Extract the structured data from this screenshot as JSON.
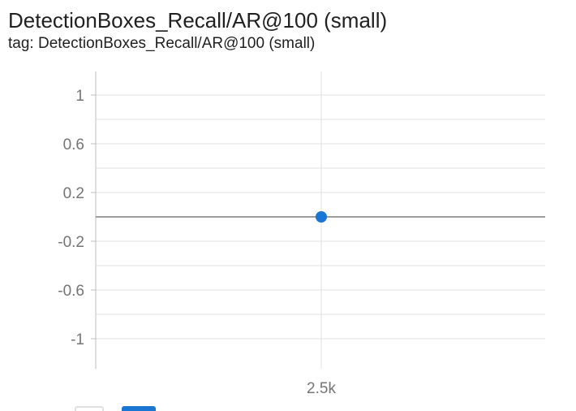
{
  "card": {
    "title": "DetectionBoxes_Recall/AR@100 (small)",
    "tag": "tag: DetectionBoxes_Recall/AR@100 (small)"
  },
  "colors": {
    "series": "#1976d2",
    "zero_line": "#9e9e9e",
    "grid": "#e0e0e0",
    "tick_text": "#757575"
  },
  "chart_data": {
    "type": "scatter",
    "title": "DetectionBoxes_Recall/AR@100 (small)",
    "xlabel": "",
    "ylabel": "",
    "x_tick_labels": [
      "2.5k"
    ],
    "x_ticks": [
      2500
    ],
    "y_tick_labels": [
      "1",
      "0.6",
      "0.2",
      "-0.2",
      "-0.6",
      "-1"
    ],
    "y_ticks": [
      1,
      0.6,
      0.2,
      -0.2,
      -0.6,
      -1
    ],
    "ylim": [
      -1.2,
      1.2
    ],
    "xlim": [
      2000,
      3000
    ],
    "grid": true,
    "series": [
      {
        "x": [
          2500
        ],
        "y": [
          0
        ]
      }
    ]
  },
  "legend_icons": [
    "series-toggle-icon",
    "series-toggle-icon-active"
  ]
}
